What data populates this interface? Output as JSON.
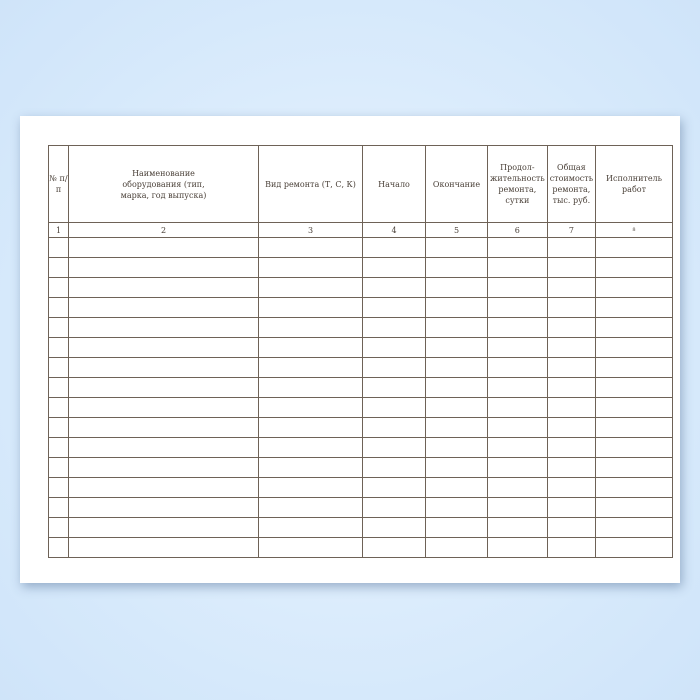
{
  "table": {
    "headers": [
      "№ п/п",
      "Наименование оборудования (тип, марка, год выпуска)",
      "Вид ремонта (Т, С, К)",
      "Начало",
      "Окончание",
      "Продол-жительность ремонта, сутки",
      "Общая стоимость ремонта, тыс. руб.",
      "Исполнитель работ"
    ],
    "column_numbers": [
      "1",
      "2",
      "3",
      "4",
      "5",
      "6",
      "7",
      "8"
    ],
    "empty_rows": 16
  }
}
